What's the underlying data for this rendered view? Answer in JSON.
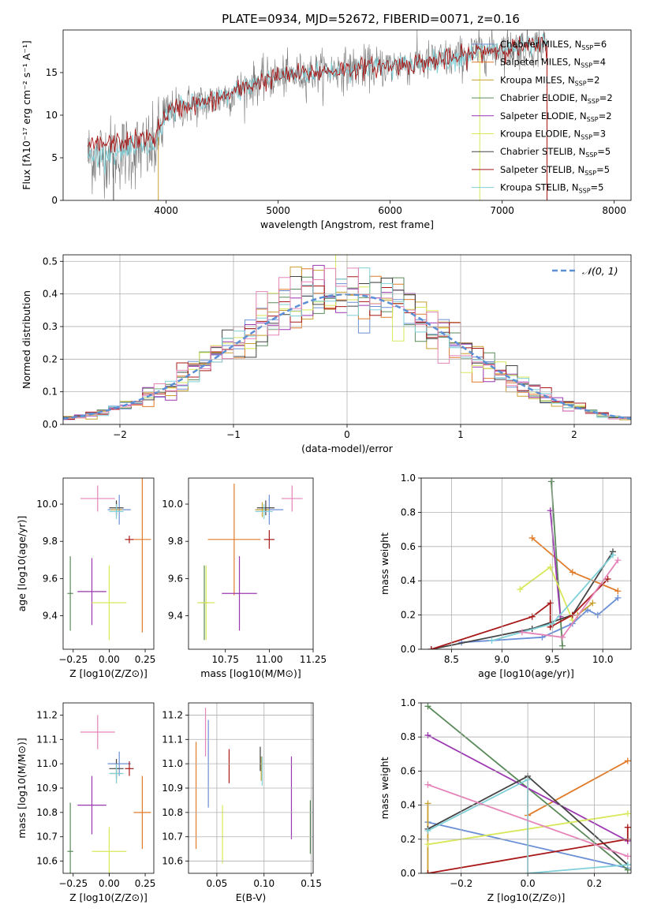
{
  "colors": {
    "chabrier_miles": "#6a8fd6",
    "salpeter_miles": "#e07b2a",
    "kroupa_miles": "#c8a030",
    "chabrier_elodie": "#5a8a5a",
    "salpeter_elodie": "#9b37b0",
    "kroupa_elodie": "#d8e85a",
    "chabrier_stelib": "#444444",
    "salpeter_stelib": "#a81818",
    "kroupa_stelib": "#7fd0d8",
    "pink": "#e583b8",
    "grid": "#b0b0b0",
    "gaussian": "#5b8fd6"
  },
  "chart_data": [
    {
      "id": "spectrum",
      "type": "line",
      "title": "PLATE=0934, MJD=52672, FIBERID=0071, z=0.16",
      "xlabel": "wavelength [Angstrom, rest frame]",
      "ylabel": "Flux [fλ10⁻¹⁷ erg cm⁻² s⁻¹ A⁻¹]",
      "xlim": [
        3080,
        8150
      ],
      "ylim": [
        0,
        20
      ],
      "xticks": [
        4000,
        5000,
        6000,
        7000,
        8000
      ],
      "yticks": [
        0,
        5,
        10,
        15
      ],
      "grid": false,
      "legend_position": "upper-right",
      "legend": [
        "Chabrier MILES, N_SSP=6",
        "Salpeter MILES, N_SSP=4",
        "Kroupa MILES, N_SSP=2",
        "Chabrier ELODIE, N_SSP=2",
        "Salpeter ELODIE, N_SSP=2",
        "Kroupa ELODIE, N_SSP=3",
        "Chabrier STELIB, N_SSP=5",
        "Salpeter STELIB, N_SSP=5",
        "Kroupa STELIB, N_SSP=5"
      ],
      "continuum": [
        [
          3300,
          5.2
        ],
        [
          3500,
          5.5
        ],
        [
          3700,
          5.8
        ],
        [
          3900,
          6.2
        ],
        [
          4000,
          10.3
        ],
        [
          4200,
          11.2
        ],
        [
          4400,
          11.6
        ],
        [
          4600,
          12.6
        ],
        [
          4800,
          13.8
        ],
        [
          5000,
          14.5
        ],
        [
          5200,
          14.8
        ],
        [
          5500,
          15.3
        ],
        [
          5800,
          15.6
        ],
        [
          6000,
          15.8
        ],
        [
          6300,
          16.2
        ],
        [
          6600,
          16.7
        ],
        [
          6800,
          17.5
        ],
        [
          7000,
          17.8
        ],
        [
          7400,
          18.2
        ]
      ]
    },
    {
      "id": "residuals",
      "type": "histogram",
      "xlabel": "(data-model)/error",
      "ylabel": "Normed distribution",
      "xlim": [
        -2.5,
        2.5
      ],
      "ylim": [
        0,
        0.52
      ],
      "xticks": [
        -2,
        -1,
        0,
        1,
        2
      ],
      "yticks": [
        0.0,
        0.1,
        0.2,
        0.3,
        0.4,
        0.5
      ],
      "grid": true,
      "legend": [
        "𝒩(0, 1)"
      ],
      "legend_position": "upper-right",
      "bin_width": 0.1
    },
    {
      "id": "age_vs_Z",
      "type": "scatter",
      "xlabel": "Z [log10(Z/Z⊙)]",
      "ylabel": "age [log10(age/yr)]",
      "xlim": [
        -0.32,
        0.31
      ],
      "ylim": [
        9.22,
        10.14
      ],
      "xticks": [
        -0.25,
        0.0,
        0.25
      ],
      "yticks": [
        9.4,
        9.6,
        9.8,
        10.0
      ],
      "grid": false,
      "points": [
        {
          "c": "chabrier_miles",
          "x": 0.07,
          "y": 9.97,
          "xe": 0.08,
          "ye": 0.08
        },
        {
          "c": "salpeter_miles",
          "x": 0.23,
          "y": 9.81,
          "xe": 0.06,
          "ye": 0.5
        },
        {
          "c": "kroupa_miles",
          "x": 0.05,
          "y": 9.97,
          "xe": 0.04,
          "ye": 0.04
        },
        {
          "c": "chabrier_elodie",
          "x": -0.27,
          "y": 9.52,
          "xe": 0.02,
          "ye": 0.2
        },
        {
          "c": "salpeter_elodie",
          "x": -0.12,
          "y": 9.53,
          "xe": 0.1,
          "ye": 0.18
        },
        {
          "c": "kroupa_elodie",
          "x": 0.0,
          "y": 9.47,
          "xe": 0.12,
          "ye": 0.2
        },
        {
          "c": "chabrier_stelib",
          "x": 0.05,
          "y": 9.98,
          "xe": 0.05,
          "ye": 0.04
        },
        {
          "c": "salpeter_stelib",
          "x": 0.14,
          "y": 9.81,
          "xe": 0.03,
          "ye": 0.02
        },
        {
          "c": "kroupa_stelib",
          "x": 0.05,
          "y": 9.96,
          "xe": 0.05,
          "ye": 0.04
        },
        {
          "c": "pink",
          "x": -0.08,
          "y": 10.03,
          "xe": 0.12,
          "ye": 0.07
        }
      ]
    },
    {
      "id": "age_vs_mass",
      "type": "scatter",
      "xlabel": "mass [log10(M/M⊙)]",
      "ylabel": "",
      "xlim": [
        10.54,
        11.25
      ],
      "ylim": [
        9.22,
        10.14
      ],
      "xticks": [
        10.75,
        11.0,
        11.25
      ],
      "yticks": [
        9.4,
        9.6,
        9.8,
        10.0
      ],
      "grid": false,
      "points": [
        {
          "c": "chabrier_miles",
          "x": 11.0,
          "y": 9.97,
          "xe": 0.08,
          "ye": 0.08
        },
        {
          "c": "salpeter_miles",
          "x": 10.8,
          "y": 9.81,
          "xe": 0.15,
          "ye": 0.3
        },
        {
          "c": "kroupa_miles",
          "x": 10.96,
          "y": 9.97,
          "xe": 0.04,
          "ye": 0.04
        },
        {
          "c": "chabrier_elodie",
          "x": 10.63,
          "y": 9.47,
          "xe": 0.02,
          "ye": 0.2
        },
        {
          "c": "salpeter_elodie",
          "x": 10.83,
          "y": 9.52,
          "xe": 0.1,
          "ye": 0.2
        },
        {
          "c": "kroupa_elodie",
          "x": 10.64,
          "y": 9.47,
          "xe": 0.05,
          "ye": 0.2
        },
        {
          "c": "chabrier_stelib",
          "x": 10.98,
          "y": 9.98,
          "xe": 0.05,
          "ye": 0.04
        },
        {
          "c": "salpeter_stelib",
          "x": 11.0,
          "y": 9.81,
          "xe": 0.03,
          "ye": 0.05
        },
        {
          "c": "kroupa_stelib",
          "x": 10.97,
          "y": 9.96,
          "xe": 0.05,
          "ye": 0.04
        },
        {
          "c": "pink",
          "x": 11.13,
          "y": 10.03,
          "xe": 0.06,
          "ye": 0.07
        }
      ]
    },
    {
      "id": "massweight_vs_age",
      "type": "line",
      "xlabel": "age  [log10(age/yr)]",
      "ylabel": "mass weight",
      "xlim": [
        8.2,
        10.28
      ],
      "ylim": [
        0,
        1
      ],
      "xticks": [
        8.5,
        9.0,
        9.5,
        10.0
      ],
      "yticks": [
        0.0,
        0.2,
        0.4,
        0.6,
        0.8,
        1.0
      ],
      "grid": true,
      "series": [
        {
          "c": "chabrier_miles",
          "pts": [
            [
              8.6,
              0.04
            ],
            [
              9.4,
              0.07
            ],
            [
              9.7,
              0.15
            ],
            [
              9.85,
              0.23
            ],
            [
              9.95,
              0.2
            ],
            [
              10.15,
              0.3
            ]
          ]
        },
        {
          "c": "salpeter_miles",
          "pts": [
            [
              9.3,
              0.65
            ],
            [
              9.7,
              0.45
            ],
            [
              10.15,
              0.34
            ]
          ]
        },
        {
          "c": "kroupa_miles",
          "pts": [
            [
              9.75,
              0.2
            ],
            [
              9.9,
              0.27
            ]
          ]
        },
        {
          "c": "chabrier_elodie",
          "pts": [
            [
              9.49,
              0.98
            ],
            [
              9.6,
              0.02
            ]
          ]
        },
        {
          "c": "salpeter_elodie",
          "pts": [
            [
              9.48,
              0.81
            ],
            [
              9.58,
              0.19
            ]
          ]
        },
        {
          "c": "kroupa_elodie",
          "pts": [
            [
              9.18,
              0.35
            ],
            [
              9.48,
              0.48
            ],
            [
              9.7,
              0.17
            ]
          ]
        },
        {
          "c": "chabrier_stelib",
          "pts": [
            [
              8.3,
              0.0
            ],
            [
              9.3,
              0.12
            ],
            [
              9.7,
              0.2
            ],
            [
              10.1,
              0.57
            ]
          ]
        },
        {
          "c": "salpeter_stelib",
          "pts": [
            [
              8.3,
              0.0
            ],
            [
              9.3,
              0.19
            ],
            [
              9.48,
              0.27
            ],
            [
              9.48,
              0.13
            ],
            [
              9.7,
              0.2
            ],
            [
              10.05,
              0.41
            ]
          ]
        },
        {
          "c": "kroupa_stelib",
          "pts": [
            [
              8.9,
              0.05
            ],
            [
              9.5,
              0.15
            ],
            [
              10.1,
              0.55
            ]
          ]
        },
        {
          "c": "pink",
          "pts": [
            [
              9.2,
              0.1
            ],
            [
              9.6,
              0.07
            ],
            [
              10.15,
              0.52
            ]
          ]
        }
      ]
    },
    {
      "id": "mass_vs_Z",
      "type": "scatter",
      "xlabel": "Z [log10(Z/Z⊙)]",
      "ylabel": "mass [log10(M/M⊙)]",
      "xlim": [
        -0.32,
        0.31
      ],
      "ylim": [
        10.55,
        11.25
      ],
      "xticks": [
        -0.25,
        0.0,
        0.25
      ],
      "yticks": [
        10.6,
        10.7,
        10.8,
        10.9,
        11.0,
        11.1,
        11.2
      ],
      "grid": false,
      "points": [
        {
          "c": "chabrier_miles",
          "x": 0.07,
          "y": 11.0,
          "xe": 0.08,
          "ye": 0.05
        },
        {
          "c": "salpeter_miles",
          "x": 0.23,
          "y": 10.8,
          "xe": 0.06,
          "ye": 0.15
        },
        {
          "c": "kroupa_miles",
          "x": 0.05,
          "y": 10.96,
          "xe": 0.04,
          "ye": 0.04
        },
        {
          "c": "chabrier_elodie",
          "x": -0.27,
          "y": 10.64,
          "xe": 0.02,
          "ye": 0.2
        },
        {
          "c": "salpeter_elodie",
          "x": -0.12,
          "y": 10.83,
          "xe": 0.1,
          "ye": 0.12
        },
        {
          "c": "kroupa_elodie",
          "x": 0.0,
          "y": 10.64,
          "xe": 0.12,
          "ye": 0.1
        },
        {
          "c": "chabrier_stelib",
          "x": 0.05,
          "y": 10.98,
          "xe": 0.05,
          "ye": 0.04
        },
        {
          "c": "salpeter_stelib",
          "x": 0.14,
          "y": 10.98,
          "xe": 0.03,
          "ye": 0.03
        },
        {
          "c": "kroupa_stelib",
          "x": 0.05,
          "y": 10.96,
          "xe": 0.05,
          "ye": 0.04
        },
        {
          "c": "pink",
          "x": -0.08,
          "y": 11.13,
          "xe": 0.12,
          "ye": 0.07
        }
      ]
    },
    {
      "id": "mass_vs_EBV",
      "type": "scatter",
      "xlabel": "E(B-V)",
      "ylabel": "",
      "xlim": [
        0.02,
        0.152
      ],
      "ylim": [
        10.55,
        11.25
      ],
      "xticks": [
        0.05,
        0.1,
        0.15
      ],
      "yticks": [
        10.6,
        10.7,
        10.8,
        10.9,
        11.0,
        11.1,
        11.2
      ],
      "grid": true,
      "points": [
        {
          "c": "chabrier_miles",
          "x": 0.041,
          "y": 11.0,
          "xe": 0.0,
          "ye": 0.18
        },
        {
          "c": "salpeter_miles",
          "x": 0.028,
          "y": 10.87,
          "xe": 0.0,
          "ye": 0.22
        },
        {
          "c": "kroupa_miles",
          "x": 0.097,
          "y": 10.98,
          "xe": 0.0,
          "ye": 0.05
        },
        {
          "c": "chabrier_elodie",
          "x": 0.149,
          "y": 10.74,
          "xe": 0.0,
          "ye": 0.11
        },
        {
          "c": "salpeter_elodie",
          "x": 0.129,
          "y": 10.86,
          "xe": 0.0,
          "ye": 0.17
        },
        {
          "c": "kroupa_elodie",
          "x": 0.056,
          "y": 10.71,
          "xe": 0.0,
          "ye": 0.12
        },
        {
          "c": "chabrier_stelib",
          "x": 0.096,
          "y": 11.02,
          "xe": 0.0,
          "ye": 0.05
        },
        {
          "c": "salpeter_stelib",
          "x": 0.063,
          "y": 10.99,
          "xe": 0.0,
          "ye": 0.07
        },
        {
          "c": "kroupa_stelib",
          "x": 0.098,
          "y": 10.97,
          "xe": 0.0,
          "ye": 0.06
        },
        {
          "c": "pink",
          "x": 0.038,
          "y": 11.13,
          "xe": 0.0,
          "ye": 0.1
        }
      ]
    },
    {
      "id": "massweight_vs_Z",
      "type": "line",
      "xlabel": "Z [log10(Z/Z⊙)]",
      "ylabel": "mass weight",
      "xlim": [
        -0.32,
        0.31
      ],
      "ylim": [
        0,
        1
      ],
      "xticks": [
        -0.2,
        0.0,
        0.2
      ],
      "yticks": [
        0.0,
        0.2,
        0.4,
        0.6,
        0.8,
        1.0
      ],
      "grid": true,
      "series": [
        {
          "c": "chabrier_miles",
          "pts": [
            [
              -0.3,
              0.3
            ],
            [
              0.3,
              0.03
            ]
          ]
        },
        {
          "c": "salpeter_miles",
          "pts": [
            [
              0.0,
              0.34
            ],
            [
              0.3,
              0.66
            ]
          ]
        },
        {
          "c": "kroupa_miles",
          "pts": [
            [
              -0.3,
              0.41
            ],
            [
              -0.3,
              0.0
            ]
          ]
        },
        {
          "c": "chabrier_elodie",
          "pts": [
            [
              -0.3,
              0.98
            ],
            [
              0.3,
              0.02
            ]
          ]
        },
        {
          "c": "salpeter_elodie",
          "pts": [
            [
              -0.3,
              0.81
            ],
            [
              0.3,
              0.19
            ]
          ]
        },
        {
          "c": "kroupa_elodie",
          "pts": [
            [
              -0.3,
              0.17
            ],
            [
              0.3,
              0.35
            ]
          ]
        },
        {
          "c": "chabrier_stelib",
          "pts": [
            [
              -0.3,
              0.26
            ],
            [
              0.0,
              0.57
            ],
            [
              0.3,
              0.05
            ]
          ]
        },
        {
          "c": "salpeter_stelib",
          "pts": [
            [
              -0.3,
              0.0
            ],
            [
              0.3,
              0.2
            ],
            [
              0.3,
              0.27
            ]
          ]
        },
        {
          "c": "kroupa_stelib",
          "pts": [
            [
              -0.3,
              0.25
            ],
            [
              0.0,
              0.55
            ],
            [
              0.0,
              0.0
            ],
            [
              0.3,
              0.05
            ]
          ]
        },
        {
          "c": "pink",
          "pts": [
            [
              -0.3,
              0.52
            ],
            [
              0.3,
              0.1
            ]
          ]
        }
      ]
    }
  ]
}
